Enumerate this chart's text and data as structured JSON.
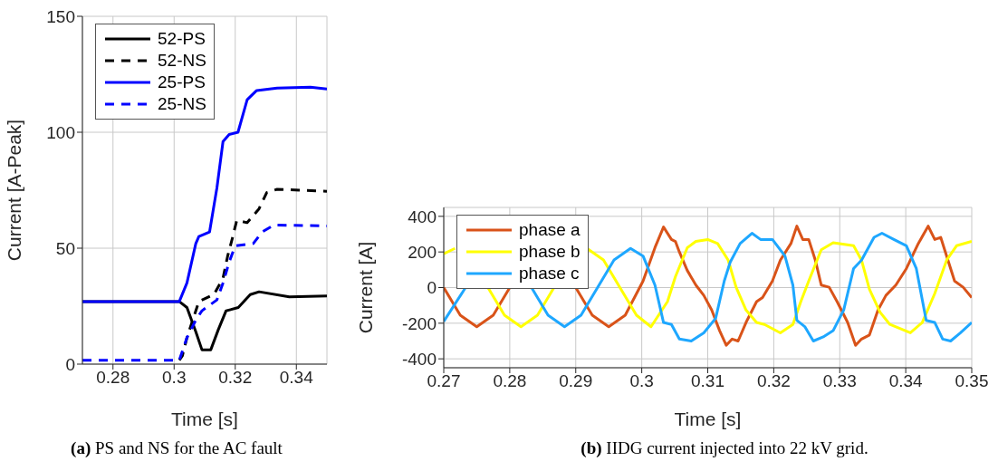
{
  "chart_data": [
    {
      "type": "line",
      "xlabel": "Time [s]",
      "ylabel": "Current [A-Peak]",
      "xlim": [
        0.27,
        0.35
      ],
      "xticks": [
        0.28,
        0.3,
        0.32,
        0.34
      ],
      "ylim": [
        0,
        150
      ],
      "yticks": [
        0,
        50,
        100,
        150
      ],
      "grid": true,
      "legend": "top left",
      "annotations": [
        "(a) PS and NS for the AC fault"
      ],
      "series": [
        {
          "name": "52-PS",
          "color": "#000000",
          "line_style": "solid",
          "x": [
            0.27,
            0.3017,
            0.3042,
            0.3071,
            0.3091,
            0.312,
            0.3145,
            0.317,
            0.321,
            0.3249,
            0.3278,
            0.3377,
            0.35
          ],
          "values": [
            27,
            27,
            24.4,
            14,
            6.2,
            6.2,
            15,
            23,
            24.4,
            30,
            31.2,
            29,
            29.4
          ]
        },
        {
          "name": "52-NS",
          "color": "#000000",
          "line_style": "dashed",
          "x": [
            0.3017,
            0.3027,
            0.3042,
            0.3081,
            0.313,
            0.316,
            0.3175,
            0.319,
            0.3205,
            0.3239,
            0.3278,
            0.3303,
            0.3337,
            0.35
          ],
          "values": [
            1.7,
            3.6,
            11.4,
            27,
            30,
            37,
            46.5,
            54,
            62,
            61,
            67,
            74,
            75.4,
            74.5
          ]
        },
        {
          "name": "25-PS",
          "color": "#0000ff",
          "line_style": "solid",
          "x": [
            0.27,
            0.3017,
            0.3042,
            0.3071,
            0.3081,
            0.3116,
            0.314,
            0.316,
            0.318,
            0.3209,
            0.3239,
            0.327,
            0.3337,
            0.3446,
            0.35
          ],
          "values": [
            27,
            27,
            35,
            52,
            55,
            57,
            76,
            96,
            99,
            100,
            114,
            118,
            119,
            119.4,
            118.6
          ]
        },
        {
          "name": "25-NS",
          "color": "#0000ff",
          "line_style": "dashed",
          "x": [
            0.27,
            0.3017,
            0.3042,
            0.3071,
            0.3091,
            0.314,
            0.316,
            0.318,
            0.32,
            0.3259,
            0.3288,
            0.3327,
            0.35
          ],
          "values": [
            1.7,
            1.7,
            11.4,
            19,
            23,
            27.7,
            35,
            44,
            51,
            52,
            57,
            60,
            59.6
          ]
        }
      ]
    },
    {
      "type": "line",
      "xlabel": "Time [s]",
      "ylabel": "Current [A]",
      "xlim": [
        0.27,
        0.35
      ],
      "xticks": [
        0.27,
        0.28,
        0.29,
        0.3,
        0.31,
        0.32,
        0.33,
        0.34,
        0.35
      ],
      "ylim": [
        -450,
        450
      ],
      "yticks": [
        -400,
        -200,
        0,
        200,
        400
      ],
      "grid": true,
      "legend": "top left",
      "annotations": [
        "(b) IIDG current injected into 22 kV grid."
      ],
      "series": [
        {
          "name": "phase a",
          "color": "#d95319",
          "line_style": "solid",
          "x": [
            0.27,
            0.2725,
            0.275,
            0.2775,
            0.28,
            0.2825,
            0.285,
            0.2875,
            0.29,
            0.2925,
            0.295,
            0.2975,
            0.3002,
            0.302,
            0.3033,
            0.3045,
            0.3051,
            0.3057,
            0.3069,
            0.3082,
            0.3094,
            0.3106,
            0.3118,
            0.3128,
            0.3137,
            0.3146,
            0.3158,
            0.3174,
            0.3183,
            0.3198,
            0.321,
            0.3226,
            0.3235,
            0.3244,
            0.3253,
            0.3263,
            0.3272,
            0.3284,
            0.3296,
            0.3312,
            0.3324,
            0.3333,
            0.3345,
            0.3358,
            0.337,
            0.3385,
            0.3401,
            0.3419,
            0.3434,
            0.3444,
            0.3453,
            0.3462,
            0.3474,
            0.3487,
            0.35
          ],
          "values": [
            0,
            -155,
            -220,
            -155,
            0,
            null,
            null,
            null,
            0,
            -155,
            -220,
            -155,
            37,
            224,
            340,
            270,
            259,
            200,
            96,
            14,
            -44,
            -126,
            -242,
            -324,
            -289,
            -300,
            -196,
            -79,
            -56,
            37,
            154,
            247,
            345,
            270,
            270,
            154,
            14,
            2,
            -79,
            -196,
            -324,
            -289,
            -266,
            -126,
            -44,
            14,
            107,
            247,
            345,
            270,
            282,
            177,
            37,
            2,
            -56
          ]
        },
        {
          "name": "phase b",
          "color": "#ffff00",
          "line_style": "solid",
          "x": [
            0.27,
            0.2717,
            0.2742,
            0.2767,
            0.2792,
            0.2817,
            0.2842,
            0.2867,
            0.2892,
            0.2917,
            0.2942,
            0.2967,
            0.2992,
            0.3014,
            0.3039,
            0.3051,
            0.3069,
            0.3082,
            0.31,
            0.3115,
            0.3131,
            0.3143,
            0.3158,
            0.3174,
            0.3186,
            0.321,
            0.3229,
            0.3241,
            0.3253,
            0.3272,
            0.329,
            0.3321,
            0.3333,
            0.3345,
            0.3361,
            0.3376,
            0.3407,
            0.3425,
            0.3444,
            0.3462,
            0.3477,
            0.35
          ],
          "values": [
            190,
            220,
            null,
            0,
            -155,
            -220,
            -155,
            0,
            null,
            220,
            155,
            0,
            -155,
            -220,
            -79,
            61,
            224,
            259,
            270,
            247,
            154,
            2,
            -126,
            -196,
            -207,
            -254,
            -207,
            -79,
            37,
            212,
            252,
            235,
            154,
            -9,
            -138,
            -207,
            -254,
            -196,
            -33,
            154,
            235,
            259
          ]
        },
        {
          "name": "phase c",
          "color": "#1ea7ff",
          "line_style": "solid",
          "x": [
            0.27,
            0.2733,
            0.2758,
            0.2783,
            0.2808,
            0.2833,
            0.2858,
            0.2883,
            0.2908,
            0.2933,
            0.2958,
            0.2983,
            0.3002,
            0.302,
            0.3033,
            0.3045,
            0.3057,
            0.3075,
            0.3094,
            0.3112,
            0.3125,
            0.3134,
            0.3149,
            0.3167,
            0.318,
            0.3198,
            0.3217,
            0.3229,
            0.3235,
            0.3247,
            0.326,
            0.3275,
            0.329,
            0.3306,
            0.3321,
            0.3333,
            0.3352,
            0.3364,
            0.3382,
            0.3401,
            0.3416,
            0.3431,
            0.3444,
            0.3456,
            0.3468,
            0.3483,
            0.35
          ],
          "values": [
            -190,
            0,
            null,
            null,
            null,
            0,
            -155,
            -220,
            -155,
            0,
            155,
            220,
            177,
            14,
            -196,
            -207,
            -289,
            -300,
            -254,
            -172,
            37,
            142,
            247,
            305,
            270,
            270,
            177,
            14,
            -184,
            -219,
            -300,
            -277,
            -242,
            -126,
            107,
            154,
            282,
            305,
            270,
            235,
            107,
            -184,
            -196,
            -289,
            -300,
            -254,
            -196
          ]
        }
      ]
    }
  ]
}
